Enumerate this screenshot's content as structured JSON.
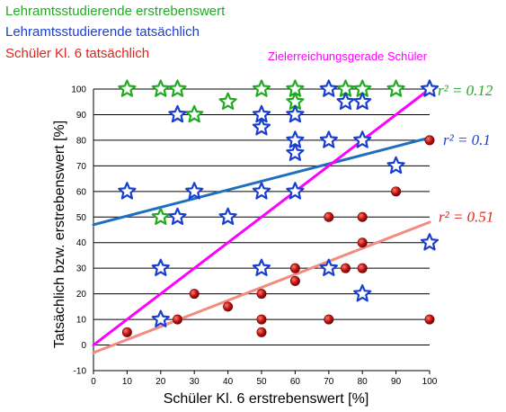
{
  "colors": {
    "green": "#22aa22",
    "blue": "#1a3fd0",
    "red": "#e2231a",
    "magenta": "#ff00ff",
    "blue_line": "#1f6fc0",
    "red_line": "#f28c82",
    "dot": "#b01010",
    "grid": "#000000"
  },
  "legend": [
    {
      "label": "Lehramtsstudierende erstrebenswert",
      "color": "#22aa22"
    },
    {
      "label": "Lehramtsstudierende tatsächlich",
      "color": "#1a3fd0"
    },
    {
      "label": "Schüler Kl. 6 tatsächlich",
      "color": "#e2231a"
    }
  ],
  "annotation": {
    "label": "Zielerreichungsgerade Schüler",
    "color": "#ff00ff"
  },
  "chart_data": {
    "type": "scatter",
    "xlabel": "Schüler Kl. 6 erstrebenswert [%]",
    "ylabel": "Tatsächlich bzw.  erstrebenswert [%]",
    "xlim": [
      0,
      100
    ],
    "ylim": [
      -10,
      100
    ],
    "xticks": [
      "0",
      "10",
      "20",
      "30",
      "40",
      "50",
      "60",
      "70",
      "80",
      "90",
      "100"
    ],
    "yticks": [
      "-10",
      "0",
      "10",
      "20",
      "30",
      "40",
      "50",
      "60",
      "70",
      "80",
      "90",
      "100"
    ],
    "grid": "horizontal",
    "series": [
      {
        "name": "Lehramtsstudierende erstrebenswert",
        "marker": "star",
        "color": "#22aa22",
        "points": [
          [
            10,
            100
          ],
          [
            20,
            100
          ],
          [
            25,
            100
          ],
          [
            40,
            95
          ],
          [
            50,
            100
          ],
          [
            60,
            100
          ],
          [
            60,
            95
          ],
          [
            75,
            100
          ],
          [
            80,
            100
          ],
          [
            90,
            100
          ],
          [
            30,
            90
          ],
          [
            20,
            50
          ]
        ]
      },
      {
        "name": "Lehramtsstudierende tatsächlich",
        "marker": "star",
        "color": "#1a3fd0",
        "points": [
          [
            70,
            100
          ],
          [
            80,
            95
          ],
          [
            75,
            95
          ],
          [
            100,
            100
          ],
          [
            25,
            90
          ],
          [
            50,
            90
          ],
          [
            60,
            90
          ],
          [
            50,
            85
          ],
          [
            60,
            80
          ],
          [
            70,
            80
          ],
          [
            80,
            80
          ],
          [
            60,
            75
          ],
          [
            90,
            70
          ],
          [
            10,
            60
          ],
          [
            30,
            60
          ],
          [
            50,
            60
          ],
          [
            60,
            60
          ],
          [
            25,
            50
          ],
          [
            40,
            50
          ],
          [
            100,
            40
          ],
          [
            20,
            30
          ],
          [
            50,
            30
          ],
          [
            70,
            30
          ],
          [
            80,
            20
          ],
          [
            20,
            10
          ]
        ]
      },
      {
        "name": "Schüler Kl. 6 tatsächlich",
        "marker": "dot",
        "color": "#b01010",
        "points": [
          [
            100,
            80
          ],
          [
            90,
            60
          ],
          [
            70,
            50
          ],
          [
            80,
            50
          ],
          [
            80,
            40
          ],
          [
            60,
            30
          ],
          [
            75,
            30
          ],
          [
            80,
            30
          ],
          [
            60,
            25
          ],
          [
            30,
            20
          ],
          [
            50,
            20
          ],
          [
            40,
            15
          ],
          [
            25,
            10
          ],
          [
            50,
            10
          ],
          [
            70,
            10
          ],
          [
            100,
            10
          ],
          [
            10,
            5
          ],
          [
            50,
            5
          ]
        ]
      }
    ],
    "lines": [
      {
        "name": "Zielerreichungsgerade Schüler",
        "color": "#ff00ff",
        "x": [
          0,
          100
        ],
        "y": [
          0,
          100
        ]
      },
      {
        "color": "#1f6fc0",
        "x": [
          0,
          100
        ],
        "y": [
          47,
          81
        ],
        "r2_label": "r² = 0.1",
        "r2_color": "#1a3fd0"
      },
      {
        "color": "#f28c82",
        "x": [
          0,
          100
        ],
        "y": [
          -3,
          48
        ],
        "r2_label": "r² = 0.51",
        "r2_color": "#e2231a"
      }
    ],
    "r2_labels": [
      {
        "text": "r² = 0.12",
        "color": "#22aa22",
        "at_y": 100
      },
      {
        "text": "r² = 0.1",
        "color": "#1a3fd0",
        "at_y": 80
      },
      {
        "text": "r² = 0.51",
        "color": "#e2231a",
        "at_y": 50
      }
    ]
  }
}
